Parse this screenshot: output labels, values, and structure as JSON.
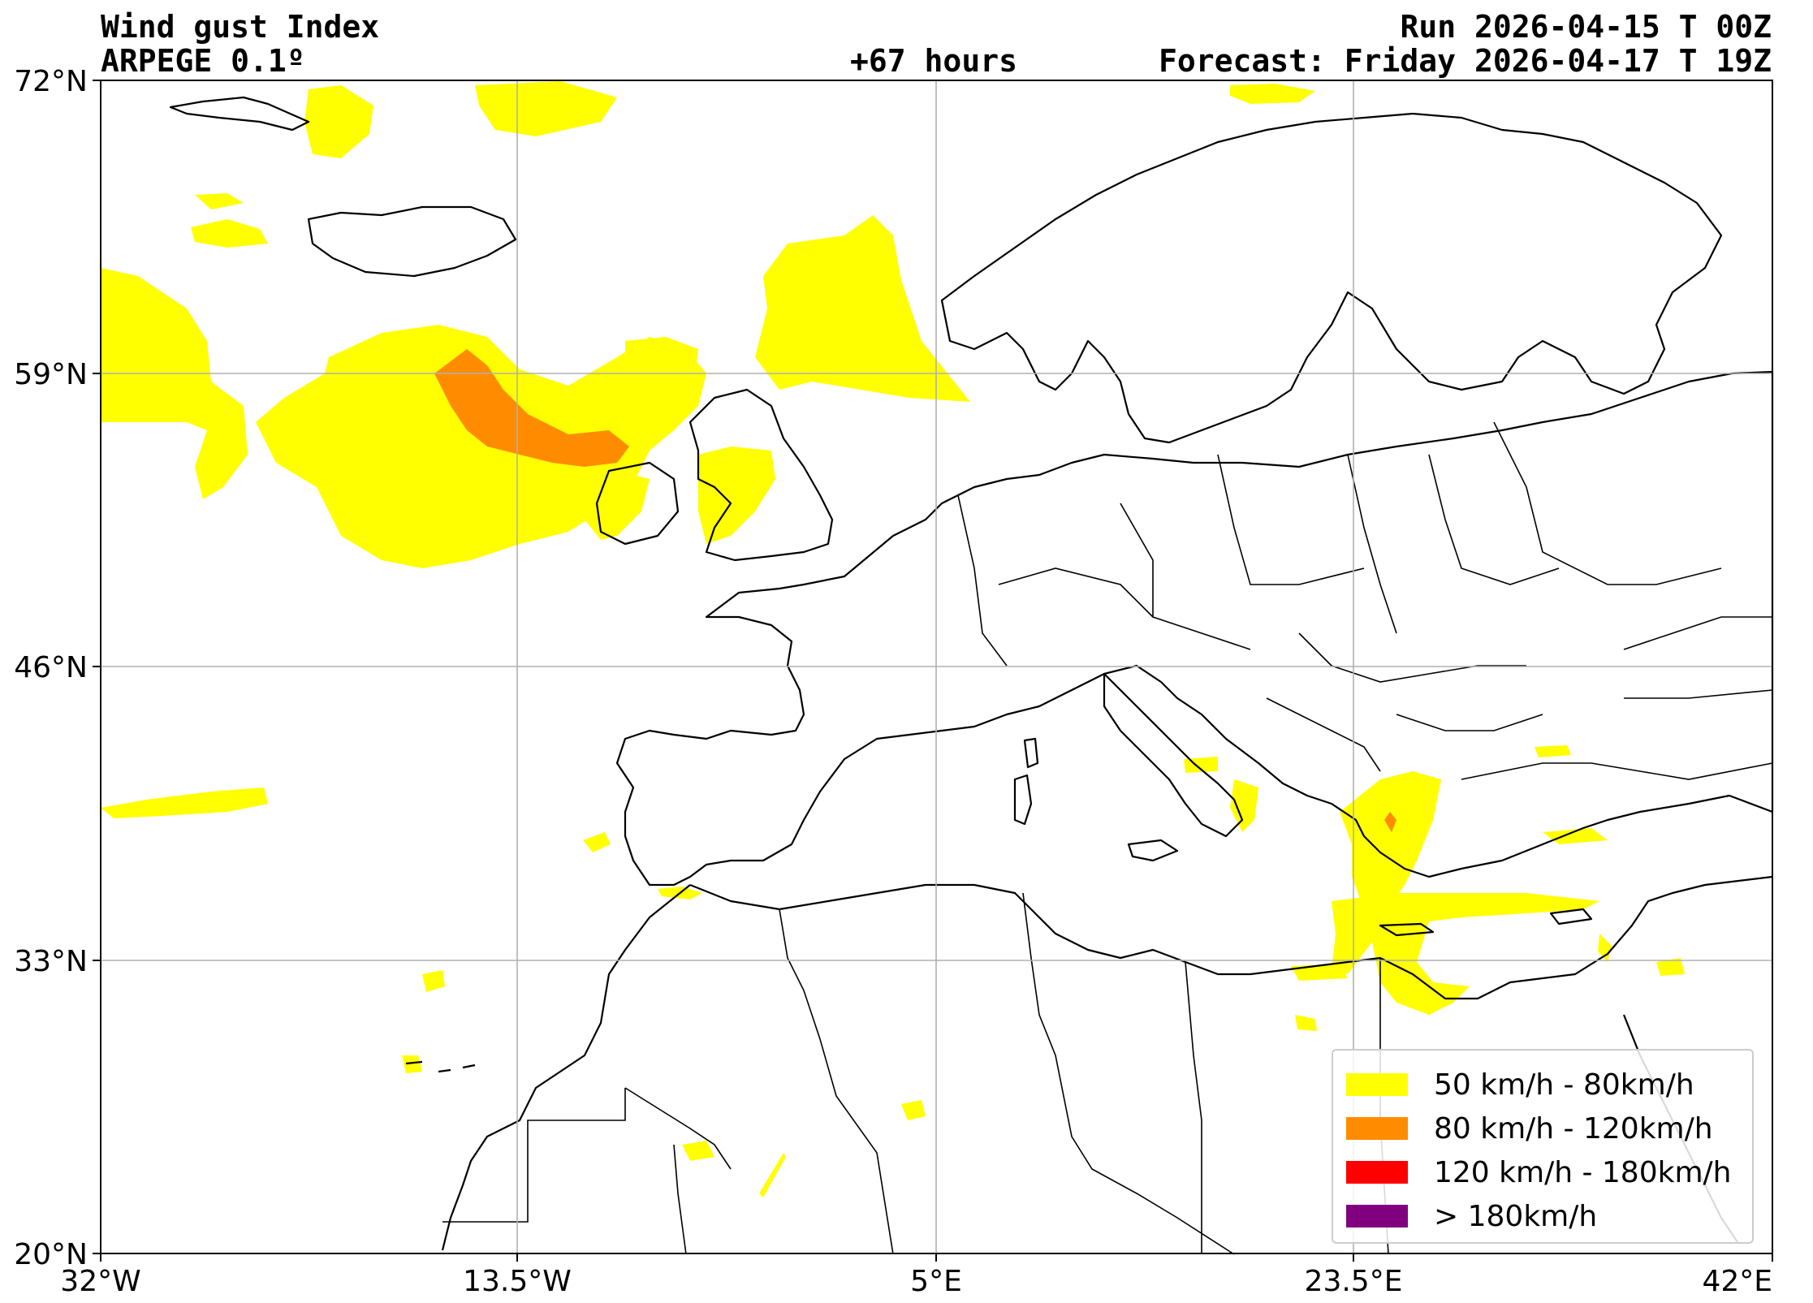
{
  "header": {
    "title": "Wind gust Index",
    "model": "ARPEGE 0.1º",
    "lead": "+67 hours",
    "run": "Run 2026-04-15 T 00Z",
    "forecast": "Forecast: Friday 2026-04-17 T 19Z"
  },
  "axes": {
    "lon_ticks": [
      "32°W",
      "13.5°W",
      "5°E",
      "23.5°E",
      "42°E"
    ],
    "lat_ticks": [
      "72°N",
      "59°N",
      "46°N",
      "33°N",
      "20°N"
    ],
    "lon_range": [
      -32,
      42
    ],
    "lat_range": [
      20,
      72
    ],
    "grid": true
  },
  "legend": {
    "placement": "bottom-right",
    "items": [
      {
        "label": "50 km/h - 80km/h",
        "color": "#ffff00"
      },
      {
        "label": "80 km/h - 120km/h",
        "color": "#ff8c00"
      },
      {
        "label": "120 km/h - 180km/h",
        "color": "#ff0000"
      },
      {
        "label": "> 180km/h",
        "color": "#800080"
      }
    ]
  },
  "colors": {
    "gust_50_80": "#ffff00",
    "gust_80_120": "#ff8c00",
    "coastline": "#000000",
    "grid": "#b0b0b0"
  }
}
